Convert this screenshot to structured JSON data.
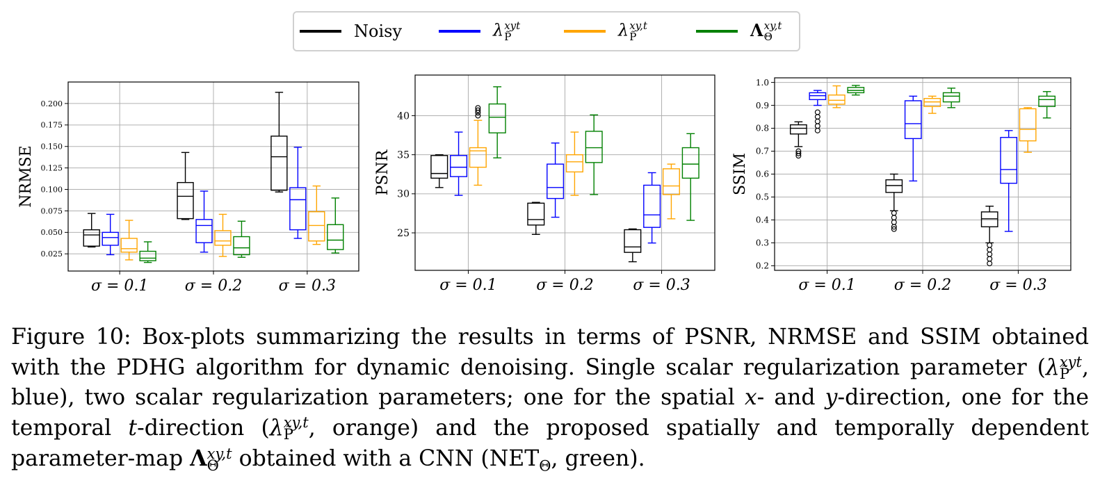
{
  "legend": {
    "items": [
      {
        "label": "Noisy",
        "color": "#000000"
      },
      {
        "label": "λ",
        "sup": "xyt",
        "sub": "P̃",
        "color": "#0000ff"
      },
      {
        "label": "λ",
        "sup": "xy,t",
        "sub": "P̃",
        "color": "#ffa500"
      },
      {
        "label": "Λ",
        "sup": "xy,t",
        "sub": "Θ",
        "color": "#008000"
      }
    ]
  },
  "chart_data": [
    {
      "type": "box",
      "ylabel": "NRMSE",
      "categories": [
        "σ = 0.1",
        "σ = 0.2",
        "σ = 0.3"
      ],
      "ylim": [
        0.005,
        0.225
      ],
      "yticks": [
        "0.025",
        "0.050",
        "0.075",
        "0.100",
        "0.125",
        "0.150",
        "0.175",
        "0.200"
      ],
      "ytick_values": [
        0.025,
        0.05,
        0.075,
        0.1,
        0.125,
        0.15,
        0.175,
        0.2
      ],
      "grid": true,
      "series": [
        {
          "color": "#000000",
          "boxes": [
            {
              "whislo": 0.033,
              "q1": 0.034,
              "med": 0.047,
              "q3": 0.053,
              "whishi": 0.072,
              "fliers": []
            },
            {
              "whislo": 0.065,
              "q1": 0.066,
              "med": 0.092,
              "q3": 0.108,
              "whishi": 0.143,
              "fliers": []
            },
            {
              "whislo": 0.097,
              "q1": 0.099,
              "med": 0.138,
              "q3": 0.162,
              "whishi": 0.213,
              "fliers": []
            }
          ]
        },
        {
          "color": "#0000ff",
          "boxes": [
            {
              "whislo": 0.024,
              "q1": 0.035,
              "med": 0.044,
              "q3": 0.05,
              "whishi": 0.071,
              "fliers": []
            },
            {
              "whislo": 0.027,
              "q1": 0.038,
              "med": 0.058,
              "q3": 0.065,
              "whishi": 0.098,
              "fliers": []
            },
            {
              "whislo": 0.043,
              "q1": 0.053,
              "med": 0.088,
              "q3": 0.102,
              "whishi": 0.149,
              "fliers": []
            }
          ]
        },
        {
          "color": "#ffa500",
          "boxes": [
            {
              "whislo": 0.018,
              "q1": 0.027,
              "med": 0.031,
              "q3": 0.043,
              "whishi": 0.064,
              "fliers": []
            },
            {
              "whislo": 0.022,
              "q1": 0.035,
              "med": 0.04,
              "q3": 0.052,
              "whishi": 0.071,
              "fliers": []
            },
            {
              "whislo": 0.036,
              "q1": 0.04,
              "med": 0.058,
              "q3": 0.074,
              "whishi": 0.104,
              "fliers": []
            }
          ]
        },
        {
          "color": "#008000",
          "boxes": [
            {
              "whislo": 0.015,
              "q1": 0.017,
              "med": 0.02,
              "q3": 0.028,
              "whishi": 0.039,
              "fliers": []
            },
            {
              "whislo": 0.021,
              "q1": 0.024,
              "med": 0.032,
              "q3": 0.045,
              "whishi": 0.063,
              "fliers": []
            },
            {
              "whislo": 0.026,
              "q1": 0.03,
              "med": 0.041,
              "q3": 0.059,
              "whishi": 0.09,
              "fliers": []
            }
          ]
        }
      ]
    },
    {
      "type": "box",
      "ylabel": "PSNR",
      "categories": [
        "σ = 0.1",
        "σ = 0.2",
        "σ = 0.3"
      ],
      "ylim": [
        20.2,
        45.2
      ],
      "yticks": [
        "25",
        "30",
        "35",
        "40"
      ],
      "ytick_values": [
        25,
        30,
        35,
        40
      ],
      "grid": true,
      "series": [
        {
          "color": "#000000",
          "boxes": [
            {
              "whislo": 30.8,
              "q1": 32.0,
              "med": 32.6,
              "q3": 34.9,
              "whishi": 35.0,
              "fliers": []
            },
            {
              "whislo": 24.8,
              "q1": 26.0,
              "med": 26.7,
              "q3": 28.8,
              "whishi": 28.9,
              "fliers": []
            },
            {
              "whislo": 21.3,
              "q1": 22.5,
              "med": 23.2,
              "q3": 25.4,
              "whishi": 25.5,
              "fliers": []
            }
          ]
        },
        {
          "color": "#0000ff",
          "boxes": [
            {
              "whislo": 29.8,
              "q1": 32.2,
              "med": 33.4,
              "q3": 34.9,
              "whishi": 37.9,
              "fliers": []
            },
            {
              "whislo": 27.0,
              "q1": 29.4,
              "med": 30.8,
              "q3": 33.8,
              "whishi": 36.5,
              "fliers": []
            },
            {
              "whislo": 23.7,
              "q1": 25.7,
              "med": 27.3,
              "q3": 31.1,
              "whishi": 32.7,
              "fliers": []
            }
          ]
        },
        {
          "color": "#ffa500",
          "boxes": [
            {
              "whislo": 31.1,
              "q1": 33.4,
              "med": 35.5,
              "q3": 35.9,
              "whishi": 39.4,
              "fliers": [
                40.0,
                40.4,
                40.7,
                41.0
              ]
            },
            {
              "whislo": 29.8,
              "q1": 32.8,
              "med": 34.1,
              "q3": 35.0,
              "whishi": 37.9,
              "fliers": []
            },
            {
              "whislo": 26.8,
              "q1": 29.9,
              "med": 31.0,
              "q3": 33.2,
              "whishi": 33.8,
              "fliers": []
            }
          ]
        },
        {
          "color": "#008000",
          "boxes": [
            {
              "whislo": 34.6,
              "q1": 37.8,
              "med": 39.8,
              "q3": 41.5,
              "whishi": 43.7,
              "fliers": []
            },
            {
              "whislo": 29.9,
              "q1": 34.0,
              "med": 35.9,
              "q3": 38.0,
              "whishi": 40.1,
              "fliers": []
            },
            {
              "whislo": 26.6,
              "q1": 32.0,
              "med": 33.8,
              "q3": 35.9,
              "whishi": 37.7,
              "fliers": []
            }
          ]
        }
      ]
    },
    {
      "type": "box",
      "ylabel": "SSIM",
      "categories": [
        "σ = 0.1",
        "σ = 0.2",
        "σ = 0.3"
      ],
      "ylim": [
        0.18,
        1.02
      ],
      "yticks": [
        "0.2",
        "0.3",
        "0.4",
        "0.5",
        "0.6",
        "0.7",
        "0.8",
        "0.9",
        "1.0"
      ],
      "ytick_values": [
        0.2,
        0.3,
        0.4,
        0.5,
        0.6,
        0.7,
        0.8,
        0.9,
        1.0
      ],
      "grid": true,
      "series": [
        {
          "color": "#000000",
          "boxes": [
            {
              "whislo": 0.72,
              "q1": 0.775,
              "med": 0.8,
              "q3": 0.815,
              "whishi": 0.828,
              "fliers": [
                0.7,
                0.69,
                0.68
              ]
            },
            {
              "whislo": 0.44,
              "q1": 0.52,
              "med": 0.55,
              "q3": 0.575,
              "whishi": 0.6,
              "fliers": [
                0.43,
                0.41,
                0.39,
                0.37,
                0.36
              ]
            },
            {
              "whislo": 0.3,
              "q1": 0.37,
              "med": 0.405,
              "q3": 0.435,
              "whishi": 0.46,
              "fliers": [
                0.29,
                0.27,
                0.25,
                0.23,
                0.21
              ]
            }
          ]
        },
        {
          "color": "#0000ff",
          "boxes": [
            {
              "whislo": 0.9,
              "q1": 0.925,
              "med": 0.942,
              "q3": 0.955,
              "whishi": 0.965,
              "fliers": [
                0.87,
                0.85,
                0.83,
                0.81,
                0.79
              ]
            },
            {
              "whislo": 0.57,
              "q1": 0.755,
              "med": 0.82,
              "q3": 0.92,
              "whishi": 0.94,
              "fliers": []
            },
            {
              "whislo": 0.35,
              "q1": 0.56,
              "med": 0.62,
              "q3": 0.76,
              "whishi": 0.79,
              "fliers": []
            }
          ]
        },
        {
          "color": "#ffa500",
          "boxes": [
            {
              "whislo": 0.89,
              "q1": 0.905,
              "med": 0.922,
              "q3": 0.945,
              "whishi": 0.985,
              "fliers": []
            },
            {
              "whislo": 0.865,
              "q1": 0.895,
              "med": 0.915,
              "q3": 0.93,
              "whishi": 0.94,
              "fliers": []
            },
            {
              "whislo": 0.695,
              "q1": 0.745,
              "med": 0.795,
              "q3": 0.885,
              "whishi": 0.89,
              "fliers": []
            }
          ]
        },
        {
          "color": "#008000",
          "boxes": [
            {
              "whislo": 0.945,
              "q1": 0.955,
              "med": 0.965,
              "q3": 0.978,
              "whishi": 0.987,
              "fliers": []
            },
            {
              "whislo": 0.89,
              "q1": 0.915,
              "med": 0.94,
              "q3": 0.955,
              "whishi": 0.975,
              "fliers": []
            },
            {
              "whislo": 0.845,
              "q1": 0.895,
              "med": 0.925,
              "q3": 0.94,
              "whishi": 0.96,
              "fliers": []
            }
          ]
        }
      ]
    }
  ],
  "caption": {
    "label": "Figure 10:",
    "text_1": "Box-plots summarizing the results in terms of PSNR, NRMSE and SSIM obtained with the PDHG algorithm for dynamic denoising. Single scalar regularization parameter (",
    "text_2": ", blue), two scalar regularization parameters; one for the spatial ",
    "x_var": "x",
    "text_3": "- and ",
    "y_var": "y",
    "text_4": "-direction, one for the temporal ",
    "t_var": "t",
    "text_5": "-direction (",
    "text_6": ", orange) and the proposed spatially and temporally dependent parameter-map ",
    "text_7": " obtained with a CNN (NET",
    "net_sub": "Θ",
    "text_8": ", green).",
    "lam": "λ",
    "Lam": "Λ",
    "sup_xyt": "xyt",
    "sup_xy_t": "xy,t",
    "sub_P": "P̃",
    "sub_Theta": "Θ"
  }
}
